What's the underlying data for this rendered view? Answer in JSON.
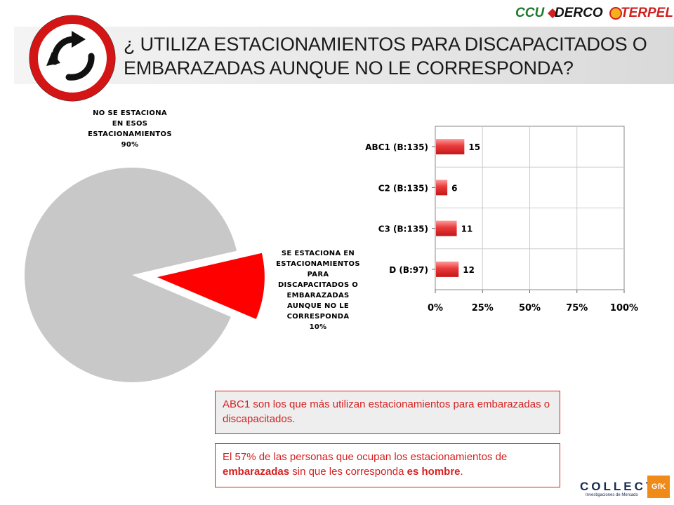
{
  "header": {
    "title_line1": "¿ UTILIZA ESTACIONAMIENTOS PARA DISCAPACITADOS O",
    "title_line2": "EMBARAZADAS AUNQUE NO LE CORRESPONDA?",
    "sponsors": [
      "CCU",
      "DERCO",
      "TERPEL"
    ]
  },
  "colors": {
    "pie_gray": "#c8c8c8",
    "pie_red": "#ff0000",
    "bar_red": "#e83a3a",
    "note_red": "#d62020"
  },
  "chart_data": [
    {
      "type": "pie",
      "slices": [
        {
          "label": [
            "NO SE ESTACIONA",
            "EN ESOS",
            "ESTACIONAMIENTOS",
            "90%"
          ],
          "value": 90
        },
        {
          "label": [
            "SE ESTACIONA EN",
            "ESTACIONAMIENTOS",
            "PARA",
            "DISCAPACITADOS O",
            "EMBARAZADAS",
            "AUNQUE NO LE",
            "CORRESPONDA",
            "10%"
          ],
          "value": 10
        }
      ]
    },
    {
      "type": "bar",
      "orientation": "horizontal",
      "categories": [
        "ABC1 (B:135)",
        "C2 (B:135)",
        "C3 (B:135)",
        "D (B:97)"
      ],
      "values": [
        15,
        6,
        11,
        12
      ],
      "xlim": [
        0,
        100
      ],
      "xticks": [
        "0%",
        "25%",
        "50%",
        "75%",
        "100%"
      ],
      "grid": true
    }
  ],
  "notes": {
    "note1": "ABC1 son los que más utilizan estacionamientos para embarazadas o discapacitados.",
    "note2_part1": "El 57% de las personas que ocupan los estacionamientos de ",
    "note2_bold1": "embarazadas",
    "note2_part2": " sin que les corresponda ",
    "note2_bold2": "es hombre",
    "note2_part3": "."
  },
  "footer": {
    "brand": "COLLECT",
    "brand_sub": "Investigaciones de Mercado",
    "partner": "GfK"
  }
}
